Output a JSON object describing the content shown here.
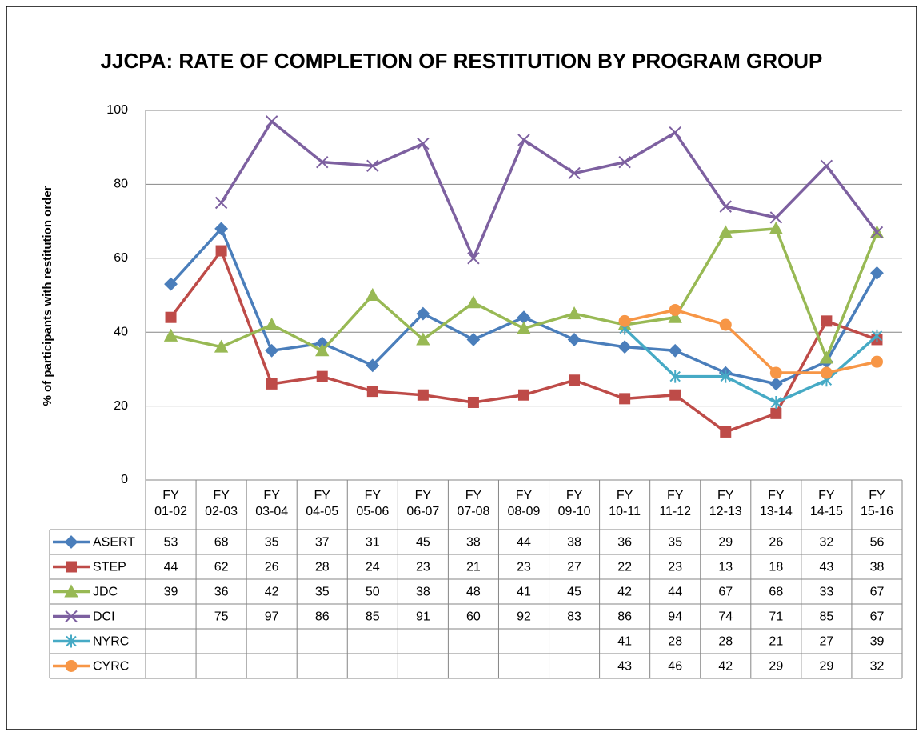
{
  "chart_data": {
    "type": "line",
    "title": "JJCPA: RATE OF COMPLETION OF RESTITUTION BY PROGRAM GROUP",
    "y_label": "% of participants  with restitution order",
    "categories": [
      "FY\n01-02",
      "FY\n02-03",
      "FY\n03-04",
      "FY\n04-05",
      "FY\n05-06",
      "FY\n06-07",
      "FY\n07-08",
      "FY\n08-09",
      "FY\n09-10",
      "FY\n10-11",
      "FY\n11-12",
      "FY\n12-13",
      "FY\n13-14",
      "FY\n14-15",
      "FY\n15-16"
    ],
    "series": [
      {
        "name": "ASERT",
        "color": "#4a7ebb",
        "marker": "diamond",
        "values": [
          53,
          68,
          35,
          37,
          31,
          45,
          38,
          44,
          38,
          36,
          35,
          29,
          26,
          32,
          56
        ]
      },
      {
        "name": "STEP",
        "color": "#be4b48",
        "marker": "square",
        "values": [
          44,
          62,
          26,
          28,
          24,
          23,
          21,
          23,
          27,
          22,
          23,
          13,
          18,
          43,
          38
        ]
      },
      {
        "name": "JDC",
        "color": "#98b954",
        "marker": "triangle",
        "values": [
          39,
          36,
          42,
          35,
          50,
          38,
          48,
          41,
          45,
          42,
          44,
          67,
          68,
          33,
          67
        ]
      },
      {
        "name": "DCI",
        "color": "#7d60a0",
        "marker": "x",
        "values": [
          null,
          75,
          97,
          86,
          85,
          91,
          60,
          92,
          83,
          86,
          94,
          74,
          71,
          85,
          67
        ]
      },
      {
        "name": "NYRC",
        "color": "#46aac5",
        "marker": "asterisk",
        "values": [
          null,
          null,
          null,
          null,
          null,
          null,
          null,
          null,
          null,
          41,
          28,
          28,
          21,
          27,
          39
        ]
      },
      {
        "name": "CYRC",
        "color": "#f79646",
        "marker": "circle",
        "values": [
          null,
          null,
          null,
          null,
          null,
          null,
          null,
          null,
          null,
          43,
          46,
          42,
          29,
          29,
          32
        ]
      }
    ],
    "ylim": [
      0,
      100
    ],
    "yticks": [
      0,
      20,
      40,
      60,
      80,
      100
    ],
    "grid": true,
    "data_table": true
  }
}
